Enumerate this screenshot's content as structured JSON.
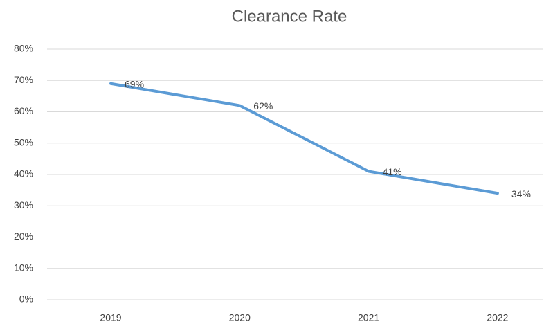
{
  "chart_data": {
    "type": "line",
    "title": "Clearance Rate",
    "categories": [
      "2019",
      "2020",
      "2021",
      "2022"
    ],
    "series": [
      {
        "name": "Clearance Rate",
        "color": "#5b9bd5",
        "values": [
          69,
          62,
          41,
          34
        ],
        "value_labels": [
          "69%",
          "62%",
          "41%",
          "34%"
        ]
      }
    ],
    "ylim": [
      0,
      80
    ],
    "yticks": [
      {
        "value": 0,
        "label": "0%"
      },
      {
        "value": 10,
        "label": "10%"
      },
      {
        "value": 20,
        "label": "20%"
      },
      {
        "value": 30,
        "label": "30%"
      },
      {
        "value": 40,
        "label": "40%"
      },
      {
        "value": 50,
        "label": "50%"
      },
      {
        "value": 60,
        "label": "60%"
      },
      {
        "value": 70,
        "label": "70%"
      },
      {
        "value": 80,
        "label": "80%"
      }
    ],
    "grid": true
  }
}
